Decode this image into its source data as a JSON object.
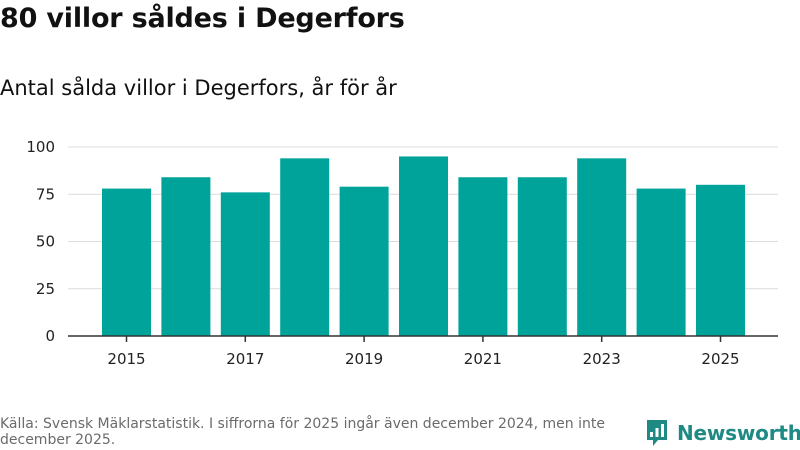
{
  "header": {
    "title": "80 villor såldes i Degerfors",
    "subtitle": "Antal sålda villor i Degerfors, år för år"
  },
  "footer": {
    "source": "Källa: Svensk Mäklarstatistik. I siffrorna för 2025 ingår även december 2024, men inte december 2025.",
    "brand": "Newsworthy"
  },
  "colors": {
    "bar": "#00a39a",
    "grid": "#dcdcdc",
    "axis": "#333333",
    "brand": "#1f8a84"
  },
  "icons": {
    "logo": "bar-chart-badge-icon"
  },
  "chart_data": {
    "type": "bar",
    "categories": [
      "2015",
      "2016",
      "2017",
      "2018",
      "2019",
      "2020",
      "2021",
      "2022",
      "2023",
      "2024",
      "2025"
    ],
    "values": [
      78,
      84,
      76,
      94,
      79,
      95,
      84,
      84,
      94,
      78,
      80
    ],
    "x_tick_labels": [
      "2015",
      "2017",
      "2019",
      "2021",
      "2023",
      "2025"
    ],
    "y_ticks": [
      0,
      25,
      50,
      75,
      100
    ],
    "ylim": [
      0,
      100
    ],
    "title": "80 villor såldes i Degerfors",
    "subtitle": "Antal sålda villor i Degerfors, år för år",
    "xlabel": "",
    "ylabel": "",
    "grid": true,
    "legend": "none"
  }
}
